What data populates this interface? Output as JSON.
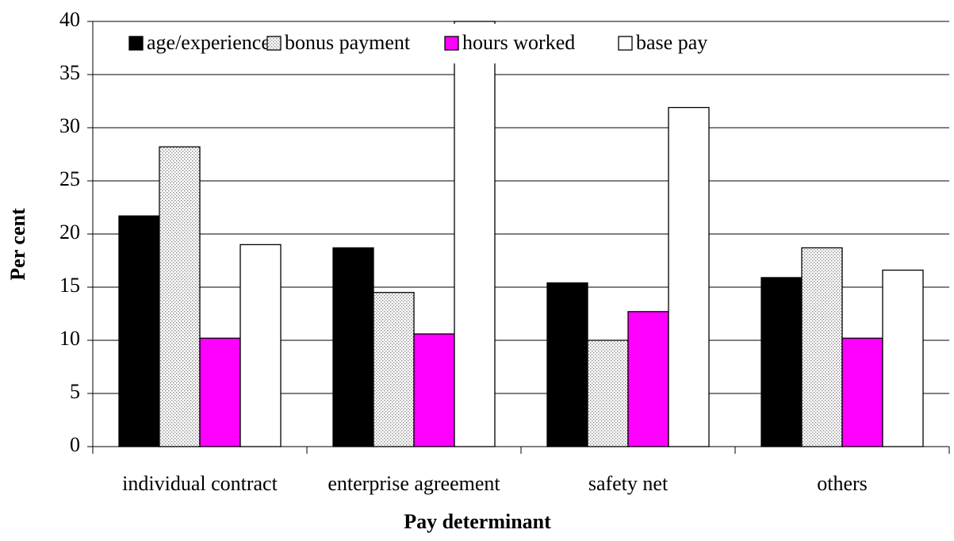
{
  "chart_data": {
    "type": "bar",
    "x_label": "Pay determinant",
    "y_label": "Per cent",
    "categories": [
      "individual contract",
      "enterprise agreement",
      "safety net",
      "others"
    ],
    "series": [
      {
        "name": "age/experience",
        "color": "#000000",
        "values": [
          21.7,
          18.7,
          15.4,
          15.9
        ]
      },
      {
        "name": "bonus payment",
        "color": "#b0b0b0",
        "pattern": "dots",
        "values": [
          28.2,
          14.5,
          10.0,
          18.7
        ]
      },
      {
        "name": "hours worked",
        "color": "#ff00ff",
        "values": [
          10.2,
          10.6,
          12.7,
          10.2
        ]
      },
      {
        "name": "base pay",
        "color": "#ffffff",
        "values": [
          19.0,
          40,
          31.9,
          16.6
        ]
      }
    ],
    "ylim": [
      0,
      40
    ],
    "yticks": [
      0,
      5,
      10,
      15,
      20,
      25,
      30,
      35,
      40
    ],
    "grid": true,
    "legend": "top"
  }
}
